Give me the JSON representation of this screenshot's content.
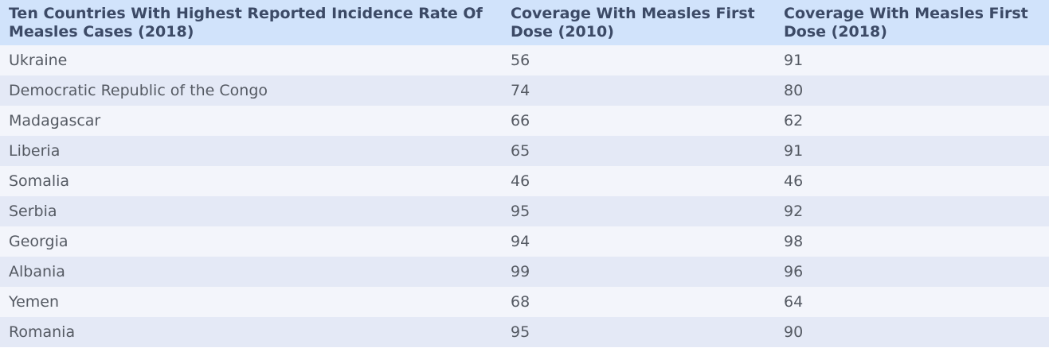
{
  "table": {
    "headers": [
      "Ten Countries With Highest Reported Incidence Rate Of Measles Cases (2018)",
      "Coverage With Measles First Dose (2010)",
      "Coverage With Measles First Dose (2018)"
    ],
    "rows": [
      [
        "Ukraine",
        "56",
        "91"
      ],
      [
        "Democratic Republic of the Congo",
        "74",
        "80"
      ],
      [
        "Madagascar",
        "66",
        "62"
      ],
      [
        "Liberia",
        "65",
        "91"
      ],
      [
        "Somalia",
        "46",
        "46"
      ],
      [
        "Serbia",
        "95",
        "92"
      ],
      [
        "Georgia",
        "94",
        "98"
      ],
      [
        "Albania",
        "99",
        "96"
      ],
      [
        "Yemen",
        "68",
        "64"
      ],
      [
        "Romania",
        "95",
        "90"
      ]
    ]
  }
}
